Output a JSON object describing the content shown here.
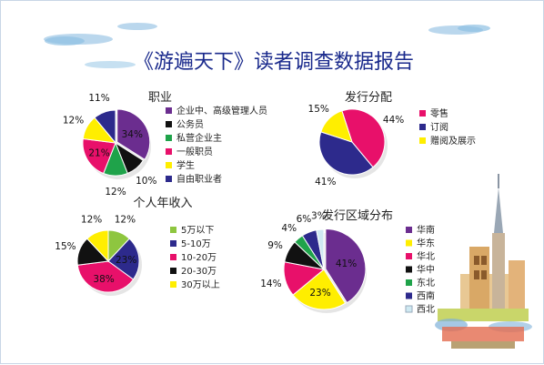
{
  "title": "《游遍天下》读者调查数据报告",
  "colors": {
    "purple": "#6b2d8f",
    "magenta": "#e8106a",
    "green": "#1fa34a",
    "black": "#111111",
    "yellow": "#ffee00",
    "navy": "#2d2a8c",
    "lightgreen": "#8ec63f",
    "lavender": "#c4bfe8",
    "cyan": "#cfe9f2",
    "title": "#1a2a8c"
  },
  "chart_data": [
    {
      "type": "pie",
      "title": "职业",
      "slices": [
        {
          "label": "企业中、高级管理人员",
          "value": 34,
          "color": "#6b2d8f"
        },
        {
          "label": "公务员",
          "value": 10,
          "color": "#111111"
        },
        {
          "label": "私营企业主",
          "value": 12,
          "color": "#1fa34a"
        },
        {
          "label": "一般职员",
          "value": 21,
          "color": "#e8106a"
        },
        {
          "label": "学生",
          "value": 12,
          "color": "#ffee00"
        },
        {
          "label": "自由职业者",
          "value": 11,
          "color": "#2d2a8c"
        }
      ],
      "legend": "right"
    },
    {
      "type": "pie",
      "title": "发行分配",
      "slices": [
        {
          "label": "零售",
          "value": 44,
          "color": "#e8106a"
        },
        {
          "label": "订阅",
          "value": 41,
          "color": "#2d2a8c"
        },
        {
          "label": "赠阅及展示",
          "value": 15,
          "color": "#ffee00"
        }
      ],
      "legend": "right"
    },
    {
      "type": "pie",
      "title": "个人年收入",
      "slices": [
        {
          "label": "5万以下",
          "value": 12,
          "color": "#8ec63f"
        },
        {
          "label": "5-10万",
          "value": 23,
          "color": "#2d2a8c"
        },
        {
          "label": "10-20万",
          "value": 38,
          "color": "#e8106a"
        },
        {
          "label": "20-30万",
          "value": 15,
          "color": "#111111"
        },
        {
          "label": "30万以上",
          "value": 12,
          "color": "#ffee00"
        }
      ],
      "legend": "right"
    },
    {
      "type": "pie",
      "title": "发行区域分布",
      "slices": [
        {
          "label": "华南",
          "value": 41,
          "color": "#6b2d8f"
        },
        {
          "label": "华东",
          "value": 23,
          "color": "#ffee00"
        },
        {
          "label": "华北",
          "value": 14,
          "color": "#e8106a"
        },
        {
          "label": "华中",
          "value": 9,
          "color": "#111111"
        },
        {
          "label": "东北",
          "value": 4,
          "color": "#1fa34a"
        },
        {
          "label": "西南",
          "value": 6,
          "color": "#2d2a8c"
        },
        {
          "label": "西北",
          "value": 3,
          "color": "#cfe9f2"
        }
      ],
      "legend": "right"
    }
  ]
}
